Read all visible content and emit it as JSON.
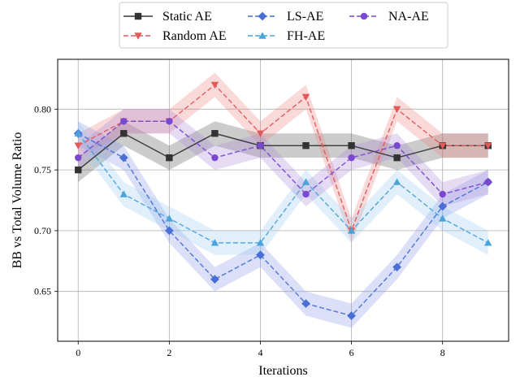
{
  "chart_data": {
    "type": "line",
    "xlabel": "Iterations",
    "ylabel": "BB vs Total Volume Ratio",
    "xlim": [
      -0.45,
      9.45
    ],
    "ylim": [
      0.609,
      0.841
    ],
    "xticks": [
      0,
      2,
      4,
      6,
      8
    ],
    "xtick_labels": [
      "0",
      "2",
      "4",
      "6",
      "8"
    ],
    "yticks": [
      0.65,
      0.7,
      0.75,
      0.8
    ],
    "ytick_labels": [
      "0.65",
      "0.70",
      "0.75",
      "0.80"
    ],
    "grid": true,
    "legend_position": "top-center, above plot",
    "x": [
      0,
      1,
      2,
      3,
      4,
      5,
      6,
      7,
      8,
      9
    ],
    "series": [
      {
        "name": "Static AE",
        "values": [
          0.75,
          0.78,
          0.76,
          0.78,
          0.77,
          0.77,
          0.77,
          0.76,
          0.77,
          0.77
        ],
        "band": 0.01,
        "color": "#333333",
        "fill": "#555555",
        "marker": "square",
        "dash": "solid"
      },
      {
        "name": "Random AE",
        "values": [
          0.77,
          0.79,
          0.79,
          0.82,
          0.78,
          0.81,
          0.7,
          0.8,
          0.77,
          0.77
        ],
        "band": 0.01,
        "color": "#e05a5a",
        "fill": "#f08080",
        "marker": "triangle-down",
        "dash": "dashed"
      },
      {
        "name": "LS-AE",
        "values": [
          0.78,
          0.76,
          0.7,
          0.66,
          0.68,
          0.64,
          0.63,
          0.67,
          0.72,
          0.74
        ],
        "band": 0.01,
        "color": "#4a6fd4",
        "fill": "#8899e8",
        "marker": "diamond",
        "dash": "dashed"
      },
      {
        "name": "FH-AE",
        "values": [
          0.78,
          0.73,
          0.71,
          0.69,
          0.69,
          0.74,
          0.7,
          0.74,
          0.71,
          0.69
        ],
        "band": 0.01,
        "color": "#4aa3d9",
        "fill": "#9dcbee",
        "marker": "triangle-up",
        "dash": "dashed"
      },
      {
        "name": "NA-AE",
        "values": [
          0.76,
          0.79,
          0.79,
          0.76,
          0.77,
          0.73,
          0.76,
          0.77,
          0.73,
          0.74
        ],
        "band": 0.01,
        "color": "#7a48d0",
        "fill": "#a88ad8",
        "marker": "circle",
        "dash": "dashed"
      }
    ]
  }
}
